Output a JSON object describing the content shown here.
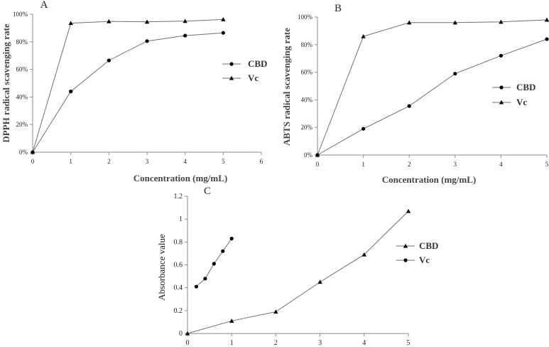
{
  "chart_data": [
    {
      "panel": "A",
      "type": "line",
      "ylabel": "DPPH radical scavenging rate",
      "xlabel": "Concentration (mg/mL)",
      "xlim": [
        0,
        6
      ],
      "ylim": [
        0,
        100
      ],
      "xticks": [
        "0",
        "1",
        "2",
        "3",
        "4",
        "5",
        "6"
      ],
      "yticks": [
        "0%",
        "20%",
        "40%",
        "60%",
        "80%",
        "100%"
      ],
      "legend": "right",
      "series": [
        {
          "name": "CBD",
          "marker": "circle",
          "x": [
            0,
            1,
            2,
            3,
            4,
            5
          ],
          "values": [
            0,
            44,
            66.5,
            80.5,
            84.5,
            86.5
          ]
        },
        {
          "name": "Vc",
          "marker": "triangle",
          "x": [
            0,
            1,
            2,
            3,
            4,
            5
          ],
          "values": [
            0,
            93.5,
            94.8,
            94.5,
            95,
            96.2
          ]
        }
      ]
    },
    {
      "panel": "B",
      "type": "line",
      "ylabel": "ABTS radical scavenging rate",
      "xlabel": "Concentration (mg/mL)",
      "xlim": [
        0,
        5
      ],
      "ylim": [
        0,
        100
      ],
      "xticks": [
        "0",
        "1",
        "2",
        "3",
        "4",
        "5"
      ],
      "yticks": [
        "0%",
        "20%",
        "40%",
        "60%",
        "80%",
        "100%"
      ],
      "legend": "right",
      "series": [
        {
          "name": "CBD",
          "marker": "circle",
          "x": [
            0,
            1,
            2,
            3,
            4,
            5
          ],
          "values": [
            0,
            19,
            35.5,
            59,
            72,
            84
          ]
        },
        {
          "name": "Vc",
          "marker": "triangle",
          "x": [
            0,
            1,
            2,
            3,
            4,
            5
          ],
          "values": [
            0,
            86,
            96,
            96,
            96.5,
            98
          ]
        }
      ]
    },
    {
      "panel": "C",
      "type": "line",
      "ylabel": "Absorbance value",
      "xlabel": "",
      "xlim": [
        0,
        5
      ],
      "ylim": [
        0,
        1.2
      ],
      "xticks": [
        "0",
        "1",
        "2",
        "3",
        "4",
        "5"
      ],
      "yticks": [
        "0",
        "0.2",
        "0.4",
        "0.6",
        "0.8",
        "1",
        "1.2"
      ],
      "legend": "right",
      "series": [
        {
          "name": "CBD",
          "marker": "triangle",
          "x": [
            0,
            1,
            2,
            3,
            4,
            5
          ],
          "values": [
            0,
            0.11,
            0.19,
            0.45,
            0.69,
            1.07
          ]
        },
        {
          "name": "Vc",
          "marker": "circle",
          "x": [
            0.2,
            0.4,
            0.6,
            0.8,
            1.0
          ],
          "values": [
            0.41,
            0.48,
            0.61,
            0.72,
            0.83
          ]
        }
      ]
    }
  ]
}
